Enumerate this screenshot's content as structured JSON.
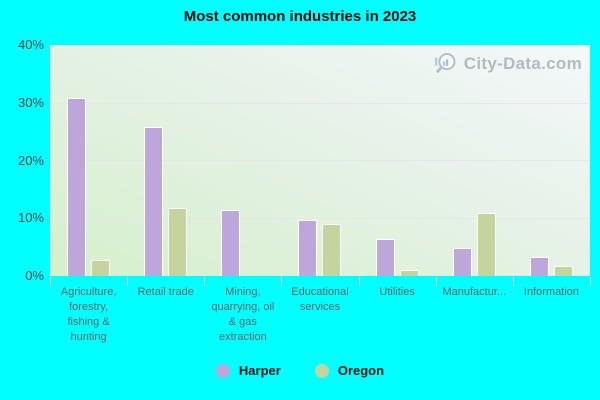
{
  "title": "Most common industries in 2023",
  "watermark": {
    "text": "City-Data.com"
  },
  "colors": {
    "background": "#00ffff",
    "harper": "#bca6da",
    "oregon": "#c5d49e",
    "bar_border": "#ffffff",
    "gridline": "#ecdfec"
  },
  "legend": {
    "items": [
      {
        "label": "Harper",
        "color": "#bca6da"
      },
      {
        "label": "Oregon",
        "color": "#c5d49e"
      }
    ]
  },
  "chart_data": {
    "type": "bar",
    "title": "Most common industries in 2023",
    "categories": [
      "Agriculture, forestry, fishing & hunting",
      "Retail trade",
      "Mining, quarrying, oil & gas extraction",
      "Educational services",
      "Utilities",
      "Manufactur...",
      "Information"
    ],
    "series": [
      {
        "name": "Harper",
        "color": "#bca6da",
        "values": [
          30.9,
          26.0,
          11.4,
          9.7,
          6.5,
          4.9,
          3.3
        ]
      },
      {
        "name": "Oregon",
        "color": "#c5d49e",
        "values": [
          2.8,
          11.9,
          0,
          9.1,
          1.0,
          11.0,
          1.8
        ]
      }
    ],
    "xlabel": "",
    "ylabel": "",
    "ylim": [
      0,
      40
    ],
    "yticks": {
      "labels": [
        "0%",
        "10%",
        "20%",
        "30%",
        "40%"
      ],
      "values": [
        0,
        10,
        20,
        30,
        40
      ]
    },
    "grid": "horizontal",
    "legend_position": "bottom",
    "legend_entries": [
      "Harper",
      "Oregon"
    ]
  }
}
